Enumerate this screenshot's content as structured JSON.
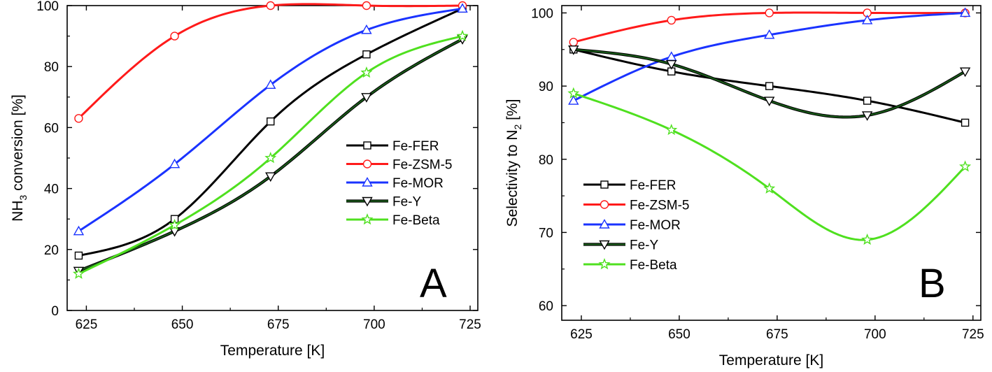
{
  "colors": {
    "Fe-FER": "#000000",
    "Fe-ZSM-5": "#ff1a1a",
    "Fe-MOR": "#1a33ff",
    "Fe-Y": "#1a5e1a",
    "Fe-Beta": "#4fe01f"
  },
  "chart_data": [
    {
      "type": "line",
      "panel_label": "A",
      "title": "",
      "xlabel": "Temperature [K]",
      "ylabel_main": "NH",
      "ylabel_sub": "3",
      "ylabel_rest": " conversion [%]",
      "xlim": [
        620,
        727
      ],
      "ylim": [
        0,
        100
      ],
      "xticks": [
        625,
        650,
        675,
        700,
        725
      ],
      "yticks": [
        0,
        20,
        40,
        60,
        80,
        100
      ],
      "legend_position": "center-right",
      "series": [
        {
          "name": "Fe-FER",
          "marker": "square",
          "x": [
            623,
            648,
            673,
            698,
            723
          ],
          "y": [
            18,
            30,
            62,
            84,
            99
          ]
        },
        {
          "name": "Fe-ZSM-5",
          "marker": "circle",
          "x": [
            623,
            648,
            673,
            698,
            723
          ],
          "y": [
            63,
            90,
            100,
            100,
            100
          ]
        },
        {
          "name": "Fe-MOR",
          "marker": "triangle-up",
          "x": [
            623,
            648,
            673,
            698,
            723
          ],
          "y": [
            26,
            48,
            74,
            92,
            99
          ]
        },
        {
          "name": "Fe-Y",
          "marker": "triangle-down",
          "x": [
            623,
            648,
            673,
            698,
            723
          ],
          "y": [
            13,
            26,
            44,
            70,
            89
          ]
        },
        {
          "name": "Fe-Beta",
          "marker": "star",
          "x": [
            623,
            648,
            673,
            698,
            723
          ],
          "y": [
            12,
            28,
            50,
            78,
            90
          ]
        }
      ]
    },
    {
      "type": "line",
      "panel_label": "B",
      "title": "",
      "xlabel": "Temperature [K]",
      "ylabel_main": "Selectivity to N",
      "ylabel_sub": "2",
      "ylabel_rest": " [%]",
      "xlim": [
        620,
        727
      ],
      "ylim": [
        58,
        101
      ],
      "xticks": [
        625,
        650,
        675,
        700,
        725
      ],
      "yticks": [
        60,
        70,
        80,
        90,
        100
      ],
      "legend_position": "lower-left",
      "series": [
        {
          "name": "Fe-FER",
          "marker": "square",
          "x": [
            623,
            648,
            673,
            698,
            723
          ],
          "y": [
            95,
            92,
            90,
            88,
            85
          ]
        },
        {
          "name": "Fe-ZSM-5",
          "marker": "circle",
          "x": [
            623,
            648,
            673,
            698,
            723
          ],
          "y": [
            96,
            99,
            100,
            100,
            100
          ]
        },
        {
          "name": "Fe-MOR",
          "marker": "triangle-up",
          "x": [
            623,
            648,
            673,
            698,
            723
          ],
          "y": [
            88,
            94,
            97,
            99,
            100
          ]
        },
        {
          "name": "Fe-Y",
          "marker": "triangle-down",
          "x": [
            623,
            648,
            673,
            698,
            723
          ],
          "y": [
            95,
            93,
            88,
            86,
            92
          ]
        },
        {
          "name": "Fe-Beta",
          "marker": "star",
          "x": [
            623,
            648,
            673,
            698,
            723
          ],
          "y": [
            89,
            84,
            76,
            69,
            79
          ]
        }
      ]
    }
  ]
}
